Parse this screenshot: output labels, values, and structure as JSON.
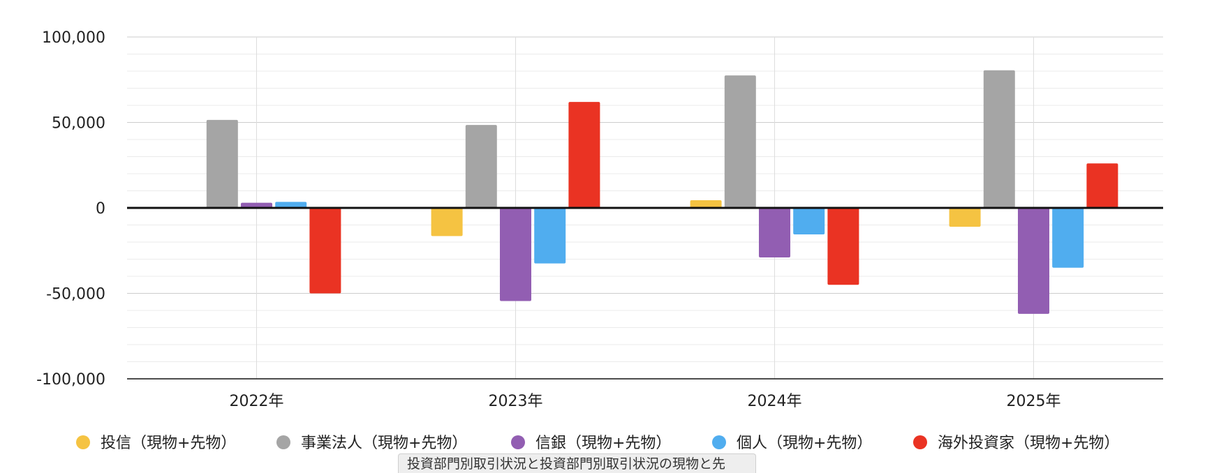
{
  "chart_data": {
    "type": "bar",
    "title": "",
    "xlabel": "",
    "ylabel": "",
    "categories": [
      "2022年",
      "2023年",
      "2024年",
      "2025年"
    ],
    "ylim": [
      -100000,
      100000
    ],
    "yticks": [
      100000,
      50000,
      0,
      -50000,
      -100000
    ],
    "ytick_labels": [
      "100,000",
      "50,000",
      "0",
      "-50,000",
      "-100,000"
    ],
    "grid": true,
    "legend_position": "bottom",
    "series": [
      {
        "name": "投信（現物+先物）",
        "color": "#F5C342",
        "values": [
          0,
          -16500,
          4500,
          -11000
        ]
      },
      {
        "name": "事業法人（現物+先物）",
        "color": "#A5A5A5",
        "values": [
          51500,
          48500,
          77500,
          80500
        ]
      },
      {
        "name": "信銀（現物+先物）",
        "color": "#925EB2",
        "values": [
          3000,
          -54500,
          -29000,
          -62000
        ]
      },
      {
        "name": "個人（現物+先物）",
        "color": "#50ADEF",
        "values": [
          3500,
          -32500,
          -15500,
          -35000
        ]
      },
      {
        "name": "海外投資家（現物+先物）",
        "color": "#EA3323",
        "values": [
          -50000,
          62000,
          -45000,
          26000
        ]
      }
    ]
  },
  "tooltip": {
    "text": "投資部門別取引状況と投資部門別取引状況の現物と先"
  }
}
